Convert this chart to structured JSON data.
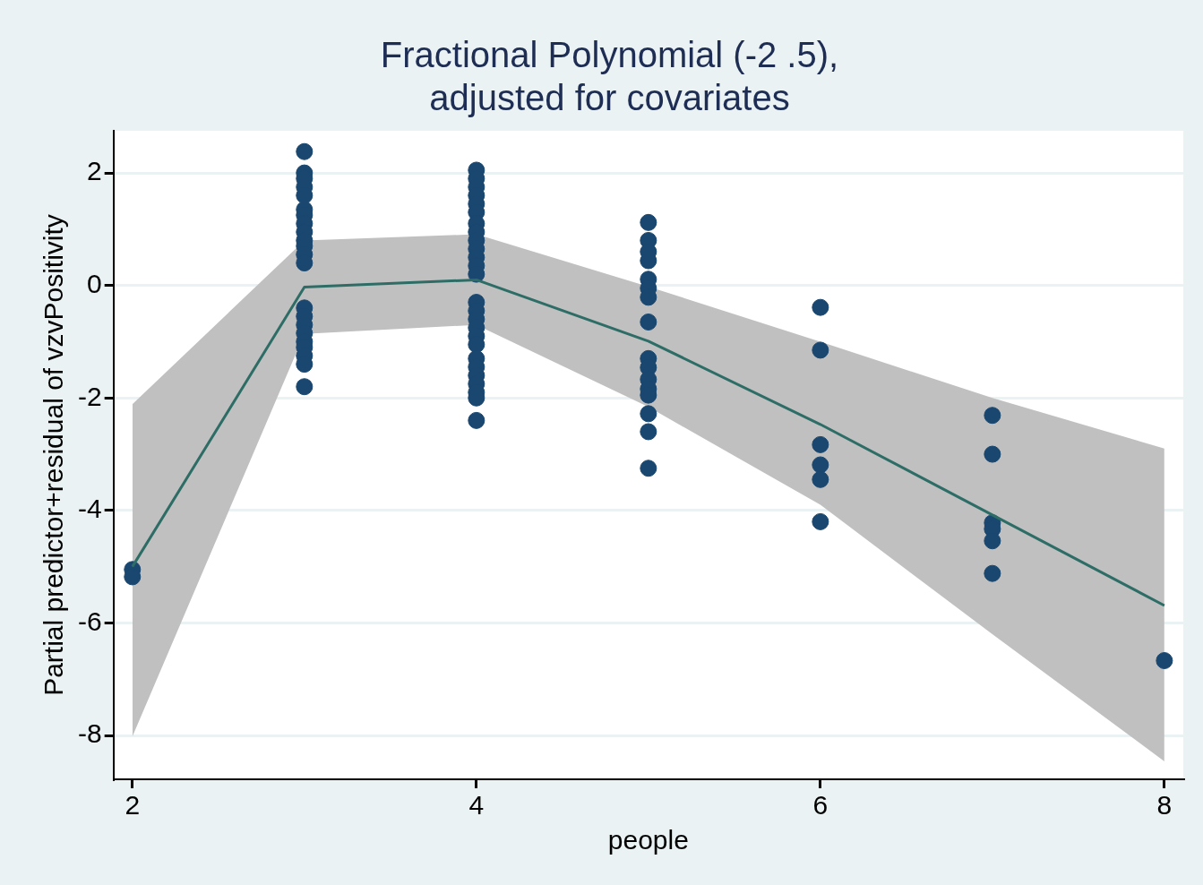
{
  "chart_data": {
    "type": "scatter",
    "title": "Fractional Polynomial (-2 .5),\nadjusted for covariates",
    "xlabel": "people",
    "ylabel": "Partial predictor+residual of vzvPositivity",
    "xlim": [
      1.89,
      8.11
    ],
    "ylim": [
      -8.78,
      2.75
    ],
    "xticks": [
      2,
      4,
      6,
      8
    ],
    "yticks": [
      -8,
      -6,
      -4,
      -2,
      0,
      2
    ],
    "grid": "y",
    "series": [
      {
        "type": "line",
        "marker": "none",
        "color": "#2d6d66",
        "x": [
          2,
          3,
          4,
          5,
          6,
          7,
          8
        ],
        "values": [
          -5.0,
          -0.03,
          0.1,
          -0.99,
          -2.47,
          -4.08,
          -5.69
        ],
        "lower": [
          -8.02,
          -0.86,
          -0.7,
          -2.16,
          -3.9,
          -6.2,
          -8.46
        ],
        "upper": [
          -2.11,
          0.8,
          0.91,
          -0.02,
          -1.0,
          -2.0,
          -2.9
        ]
      },
      {
        "marker": "circle",
        "color": "#1a476f",
        "x": [
          2,
          2,
          3,
          3,
          3,
          3,
          3,
          3,
          3,
          3,
          3,
          3,
          3,
          3,
          3,
          3,
          3,
          3,
          3,
          3,
          3,
          3,
          3,
          3,
          4,
          4,
          4,
          4,
          4,
          4,
          4,
          4,
          4,
          4,
          4,
          4,
          4,
          4,
          4,
          4,
          4,
          4,
          4,
          4,
          4,
          4,
          4,
          4,
          4,
          4,
          5,
          5,
          5,
          5,
          5,
          5,
          5,
          5,
          5,
          5,
          5,
          5,
          5,
          5,
          5,
          5,
          6,
          6,
          6,
          6,
          6,
          6,
          7,
          7,
          7,
          7,
          7,
          7,
          8
        ],
        "values": [
          -5.05,
          -5.18,
          2.38,
          2.0,
          1.9,
          1.75,
          1.6,
          1.35,
          1.25,
          1.1,
          0.95,
          0.8,
          0.7,
          0.55,
          0.4,
          -0.4,
          -0.55,
          -0.7,
          -0.85,
          -1.0,
          -1.1,
          -1.25,
          -1.4,
          -1.8,
          2.05,
          1.9,
          1.75,
          1.6,
          1.45,
          1.3,
          1.1,
          0.95,
          0.8,
          0.65,
          0.5,
          0.35,
          0.2,
          -0.3,
          -0.45,
          -0.6,
          -0.75,
          -0.9,
          -1.05,
          -1.3,
          -1.45,
          -1.6,
          -1.75,
          -1.9,
          -2.0,
          -2.4,
          1.12,
          0.8,
          0.6,
          0.44,
          0.11,
          -0.05,
          -0.21,
          -0.65,
          -1.3,
          -1.46,
          -1.67,
          -1.84,
          -1.95,
          -2.28,
          -2.6,
          -3.25,
          -0.39,
          -1.15,
          -2.83,
          -3.19,
          -3.45,
          -4.2,
          -2.31,
          -3.0,
          -4.22,
          -4.33,
          -4.54,
          -5.12,
          -6.67
        ]
      }
    ]
  }
}
